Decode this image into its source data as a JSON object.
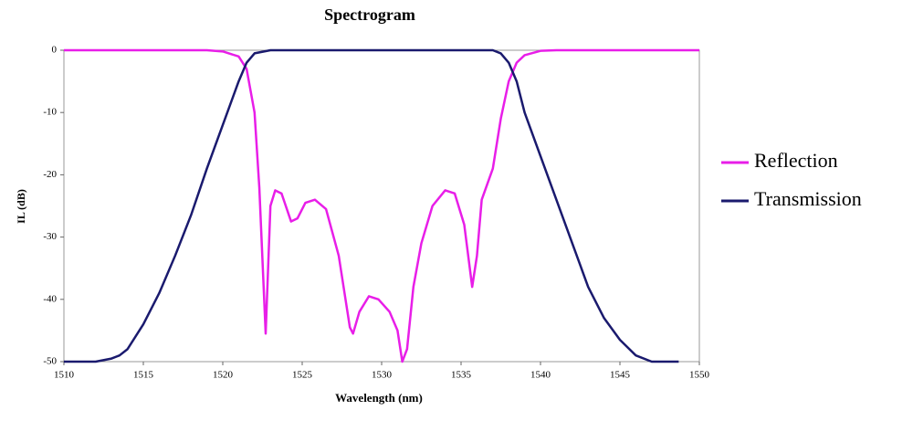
{
  "chart_data": {
    "type": "line",
    "title": "Spectrogram",
    "x_label": "Wavelength (nm)",
    "y_label": "IL (dB)",
    "xlim": [
      1510,
      1550
    ],
    "ylim": [
      -50,
      0
    ],
    "xticks": [
      1510,
      1515,
      1520,
      1525,
      1530,
      1535,
      1540,
      1545,
      1550
    ],
    "yticks": [
      0,
      -10,
      -20,
      -30,
      -40,
      -50
    ],
    "legend": "right",
    "series": [
      {
        "name": "Reflection",
        "color": "#e81ee8",
        "x": [
          1510,
          1519,
          1520,
          1521,
          1521.5,
          1522,
          1522.3,
          1522.7,
          1523,
          1523.3,
          1523.7,
          1524.3,
          1524.7,
          1525.2,
          1525.8,
          1526.5,
          1527.3,
          1528,
          1528.2,
          1528.6,
          1529.2,
          1529.8,
          1530.5,
          1531,
          1531.3,
          1531.6,
          1532,
          1532.5,
          1533.2,
          1534,
          1534.6,
          1535.2,
          1535.7,
          1536,
          1536.3,
          1537,
          1537.5,
          1538,
          1538.5,
          1539,
          1540,
          1541,
          1550
        ],
        "values": [
          0,
          0,
          -0.2,
          -1,
          -3,
          -10,
          -22,
          -45.5,
          -25,
          -22.5,
          -23,
          -27.5,
          -27,
          -24.5,
          -24,
          -25.5,
          -33,
          -44.5,
          -45.5,
          -42,
          -39.5,
          -40,
          -42,
          -45,
          -50,
          -48,
          -38,
          -31,
          -25,
          -22.5,
          -23,
          -28,
          -38,
          -33,
          -24,
          -19,
          -11,
          -5,
          -2,
          -0.8,
          -0.1,
          0,
          0
        ]
      },
      {
        "name": "Transmission",
        "color": "#1a1a6e",
        "x": [
          1510,
          1511,
          1512,
          1513,
          1513.5,
          1514,
          1515,
          1516,
          1517,
          1518,
          1519,
          1520,
          1521,
          1521.5,
          1522,
          1523,
          1537,
          1537.5,
          1538,
          1538.5,
          1539,
          1540,
          1541,
          1542,
          1543,
          1544,
          1545,
          1546,
          1547,
          1548,
          1548.7
        ],
        "values": [
          -50,
          -50,
          -50,
          -49.5,
          -49,
          -48,
          -44,
          -39,
          -33,
          -26.5,
          -19,
          -12,
          -5,
          -2,
          -0.5,
          0,
          0,
          -0.5,
          -2,
          -5,
          -10,
          -17,
          -24,
          -31,
          -38,
          -43,
          -46.5,
          -49,
          -50,
          -50,
          -50
        ]
      }
    ]
  }
}
